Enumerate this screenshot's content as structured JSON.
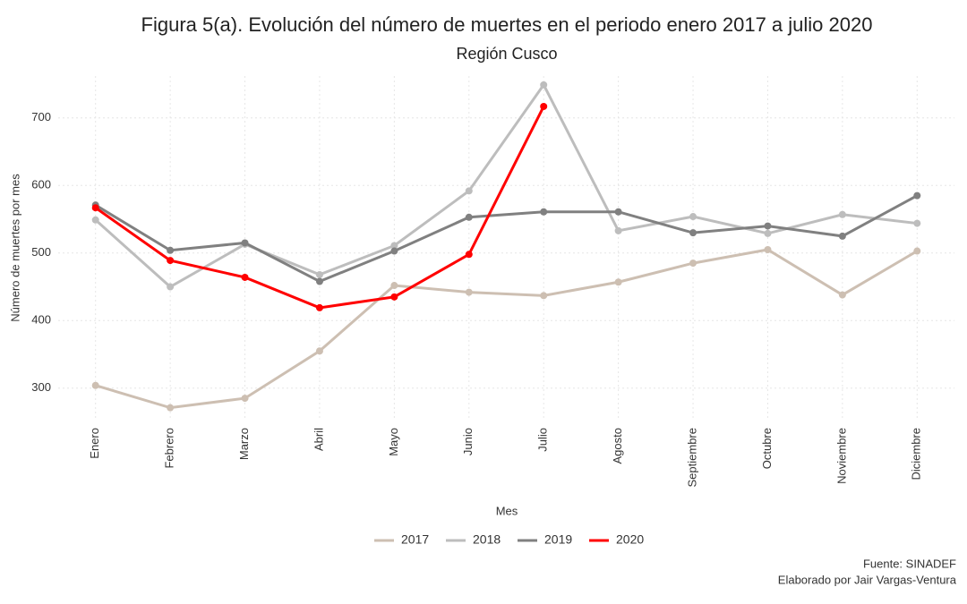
{
  "chart_data": {
    "type": "line",
    "title": "Figura 5(a). Evolución del número de muertes en el periodo enero 2017 a julio 2020",
    "subtitle": "Región Cusco",
    "x_label": "Mes",
    "y_label": "Número de muertes por mes",
    "caption": [
      "Fuente: SINADEF",
      "Elaborado por Jair Vargas-Ventura"
    ],
    "categories": [
      "Enero",
      "Febrero",
      "Marzo",
      "Abril",
      "Mayo",
      "Junio",
      "Julio",
      "Agosto",
      "Septiembre",
      "Octubre",
      "Noviembre",
      "Diciembre"
    ],
    "series": [
      {
        "name": "2017",
        "color": "#cdbfb2",
        "values": [
          304,
          271,
          285,
          355,
          452,
          442,
          437,
          457,
          485,
          505,
          438,
          503
        ]
      },
      {
        "name": "2018",
        "color": "#bdbdbd",
        "values": [
          549,
          450,
          513,
          468,
          511,
          592,
          749,
          533,
          554,
          529,
          557,
          544
        ]
      },
      {
        "name": "2019",
        "color": "#808080",
        "values": [
          571,
          504,
          515,
          458,
          503,
          553,
          561,
          561,
          530,
          540,
          525,
          585
        ]
      },
      {
        "name": "2020",
        "color": "#ff0000",
        "values": [
          567,
          489,
          464,
          419,
          435,
          498,
          717,
          null,
          null,
          null,
          null,
          null
        ]
      }
    ],
    "ylim": [
      252,
      762
    ],
    "yticks": [
      300,
      400,
      500,
      600,
      700
    ],
    "grid": true,
    "legend": "bottom"
  }
}
